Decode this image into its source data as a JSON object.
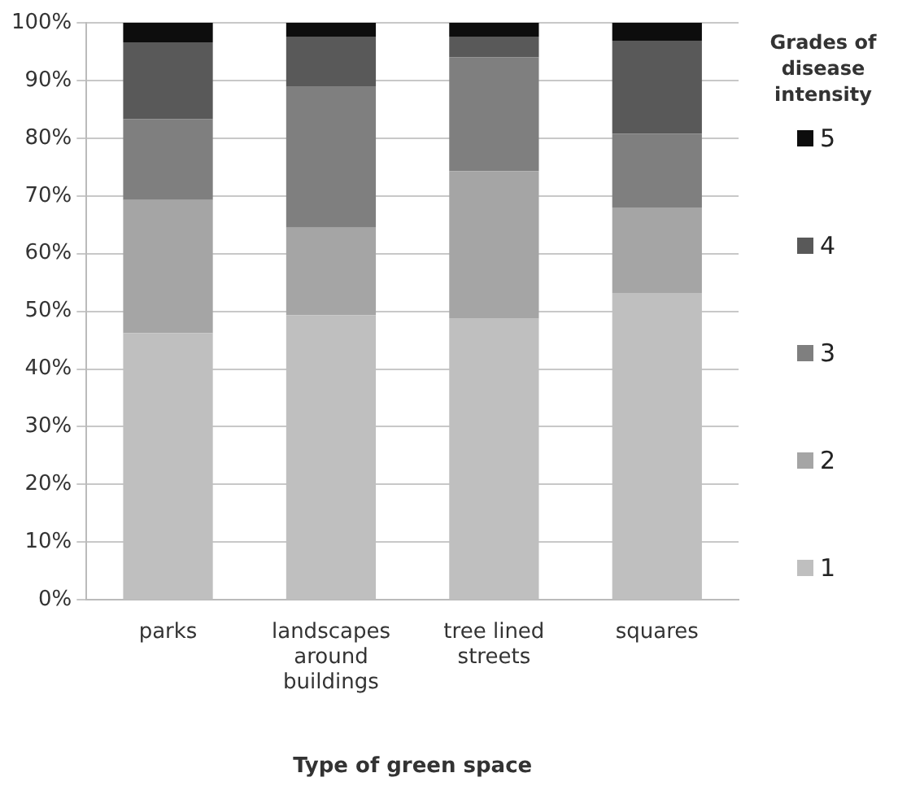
{
  "chart_data": {
    "type": "bar",
    "stacked": true,
    "xlabel": "Type of green space",
    "legend_title": "Grades of disease intensity",
    "legend": "right",
    "categories": [
      "parks",
      "landscapes around buildings",
      "tree lined streets",
      "squares"
    ],
    "ylim": [
      0,
      100
    ],
    "yticks": [
      {
        "value": 0,
        "label": "0%"
      },
      {
        "value": 10,
        "label": "10%"
      },
      {
        "value": 20,
        "label": "20%"
      },
      {
        "value": 30,
        "label": "30%"
      },
      {
        "value": 40,
        "label": "40%"
      },
      {
        "value": 50,
        "label": "50%"
      },
      {
        "value": 60,
        "label": "60%"
      },
      {
        "value": 70,
        "label": "70%"
      },
      {
        "value": 80,
        "label": "80%"
      },
      {
        "value": 90,
        "label": "90%"
      },
      {
        "value": 100,
        "label": "100%"
      }
    ],
    "grid": "y",
    "series": [
      {
        "name": "1",
        "color": "#bfbfbf",
        "values": [
          46.2,
          49.3,
          48.8,
          53.2
        ]
      },
      {
        "name": "2",
        "color": "#a5a5a5",
        "values": [
          23.1,
          15.2,
          25.5,
          14.8
        ]
      },
      {
        "name": "3",
        "color": "#7f7f7f",
        "values": [
          14.0,
          24.4,
          19.7,
          12.8
        ]
      },
      {
        "name": "4",
        "color": "#595959",
        "values": [
          13.3,
          8.7,
          3.6,
          16.1
        ]
      },
      {
        "name": "5",
        "color": "#0d0d0d",
        "values": [
          3.4,
          2.4,
          2.4,
          3.1
        ]
      }
    ]
  }
}
